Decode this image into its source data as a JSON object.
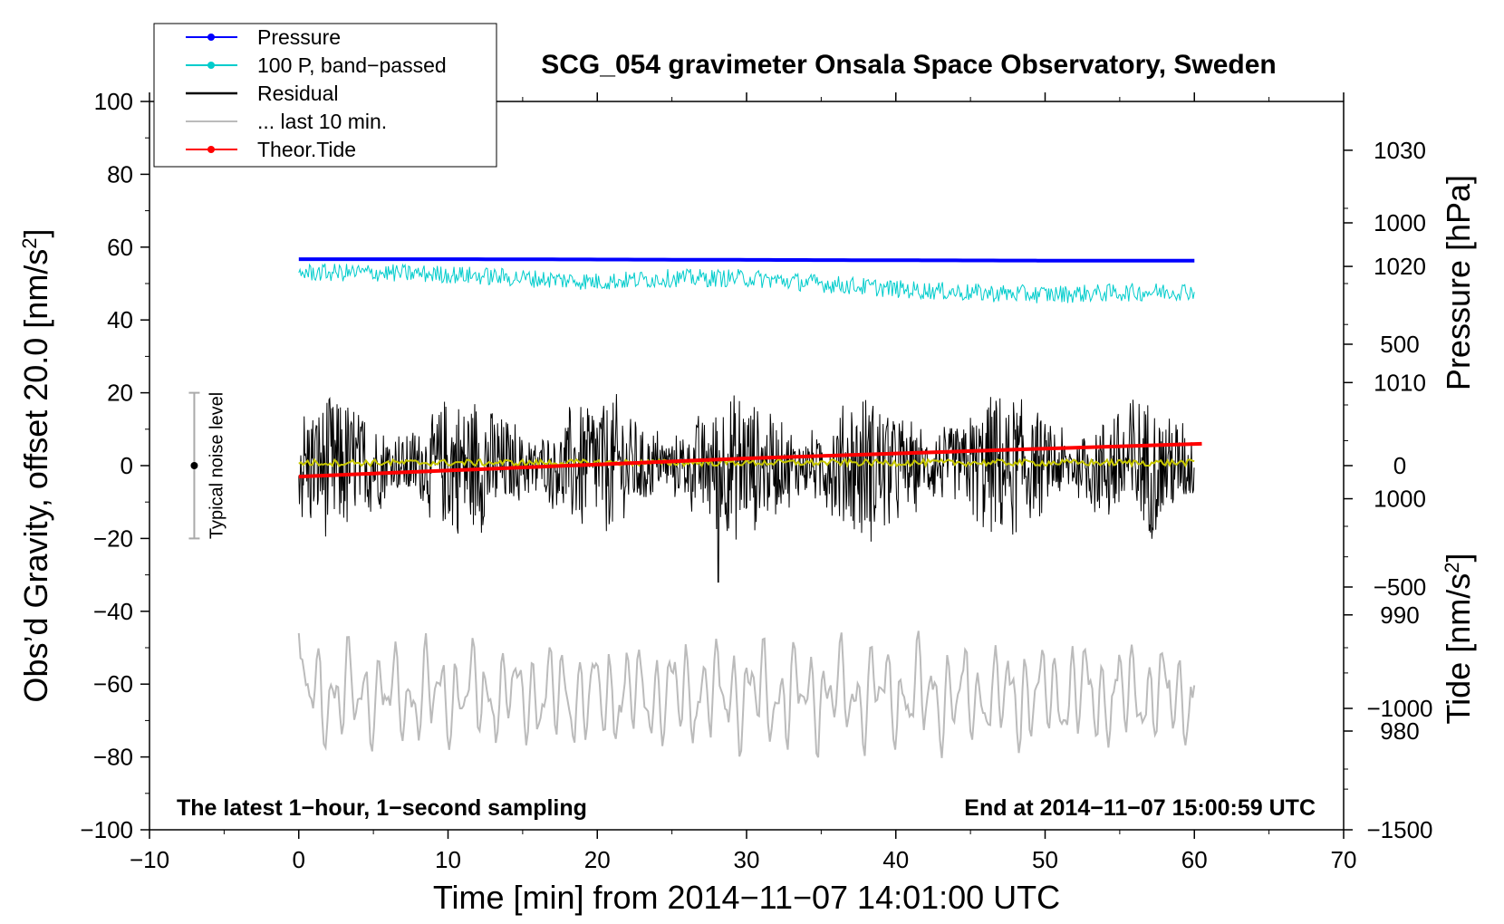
{
  "chart_data": {
    "type": "line",
    "title": "SCG_054 gravimeter Onsala Space Observatory, Sweden",
    "xlabel": "Time [min] from 2014−11−07 14:01:00 UTC",
    "ylabel_left": "Obs’d Gravity, offset 20.0 [nm/s",
    "ylabel_left_sup": "2",
    "ylabel_left_close": "]",
    "ylabel_pressure": "Pressure [hPa]",
    "ylabel_tide": "Tide [nm/s",
    "ylabel_tide_sup": "2",
    "ylabel_tide_close": "]",
    "xlim": [
      -10,
      70
    ],
    "ylim": [
      -100,
      100
    ],
    "pressure_axis": {
      "range": [
        971.5,
        1034.2
      ],
      "ticks": [
        980,
        990,
        1000,
        1010,
        1020,
        1030
      ]
    },
    "tide_axis": {
      "range": [
        -1500,
        1500
      ],
      "ticks": [
        -1500,
        -1000,
        -500,
        0,
        500,
        1000
      ]
    },
    "x_ticks": [
      -10,
      0,
      10,
      20,
      30,
      40,
      50,
      60,
      70
    ],
    "x_tick_labels": [
      "−10",
      "0",
      "10",
      "20",
      "30",
      "40",
      "50",
      "60",
      "70"
    ],
    "y_ticks": [
      -100,
      -80,
      -60,
      -40,
      -20,
      0,
      20,
      40,
      60,
      80,
      100
    ],
    "y_tick_labels": [
      "−100",
      "−80",
      "−60",
      "−40",
      "−20",
      "0",
      "20",
      "40",
      "60",
      "80",
      "100"
    ],
    "pressure_tick_labels": [
      "980",
      "990",
      "1000",
      "1010",
      "1020",
      "1030"
    ],
    "tide_tick_labels": [
      "−1500",
      "−1000",
      "−500",
      "0",
      "500",
      "1000"
    ],
    "legend": [
      {
        "label": "Pressure",
        "color": "#0000ff",
        "marker": true,
        "style": "line"
      },
      {
        "label": "100 P, band−passed",
        "color": "#00cccc",
        "marker": true,
        "style": "line"
      },
      {
        "label": "Residual",
        "color": "#000000",
        "marker": false,
        "style": "line"
      },
      {
        "label": "... last 10 min.",
        "color": "#bbbbbb",
        "marker": false,
        "style": "line"
      },
      {
        "label": "Theor.Tide",
        "color": "#ff0000",
        "marker": true,
        "style": "line"
      }
    ],
    "annotations": {
      "bottom_left": "The latest 1−hour, 1−second sampling",
      "bottom_right": "End at 2014−11−07 15:00:59 UTC",
      "noise_label": "Typical noise level",
      "noise_range": [
        -20,
        20
      ],
      "noise_x": -7
    },
    "series": [
      {
        "name": "Pressure",
        "axis": "left",
        "color": "#0000ff",
        "x": [
          0,
          10,
          20,
          30,
          40,
          50,
          60
        ],
        "values": [
          56.7,
          56.7,
          56.6,
          56.5,
          56.4,
          56.3,
          56.3
        ]
      },
      {
        "name": "100 P, band-passed",
        "axis": "left",
        "color": "#00cccc",
        "x": [
          0,
          5,
          10,
          15,
          20,
          25,
          30,
          35,
          40,
          45,
          50,
          55,
          60
        ],
        "values": [
          53.0,
          53.0,
          52.5,
          51.5,
          50.5,
          51.5,
          51.5,
          50.0,
          48.5,
          47.5,
          47.0,
          47.5,
          48.0
        ],
        "amplitude": 2.5
      },
      {
        "name": "Residual",
        "axis": "left",
        "color": "#000000",
        "x": [
          0,
          60
        ],
        "values": [
          0,
          0
        ],
        "amplitude": 22,
        "min": -32,
        "min_at": 28.1
      },
      {
        "name": "Residual smoothed",
        "axis": "left",
        "color": "#c8c800",
        "x": [
          0,
          60
        ],
        "values": [
          0.8,
          0.8
        ],
        "amplitude": 1.5
      },
      {
        "name": "... last 10 min.",
        "axis": "left",
        "color": "#bbbbbb",
        "x": [
          0,
          60
        ],
        "values": [
          -63,
          -63
        ],
        "amplitude": 15
      },
      {
        "name": "Theor.Tide",
        "axis": "tide",
        "color": "#ff0000",
        "x": [
          0,
          10,
          20,
          30,
          40,
          50,
          60.5
        ],
        "values": [
          -45,
          -20,
          5,
          30,
          50,
          70,
          90
        ]
      }
    ]
  }
}
